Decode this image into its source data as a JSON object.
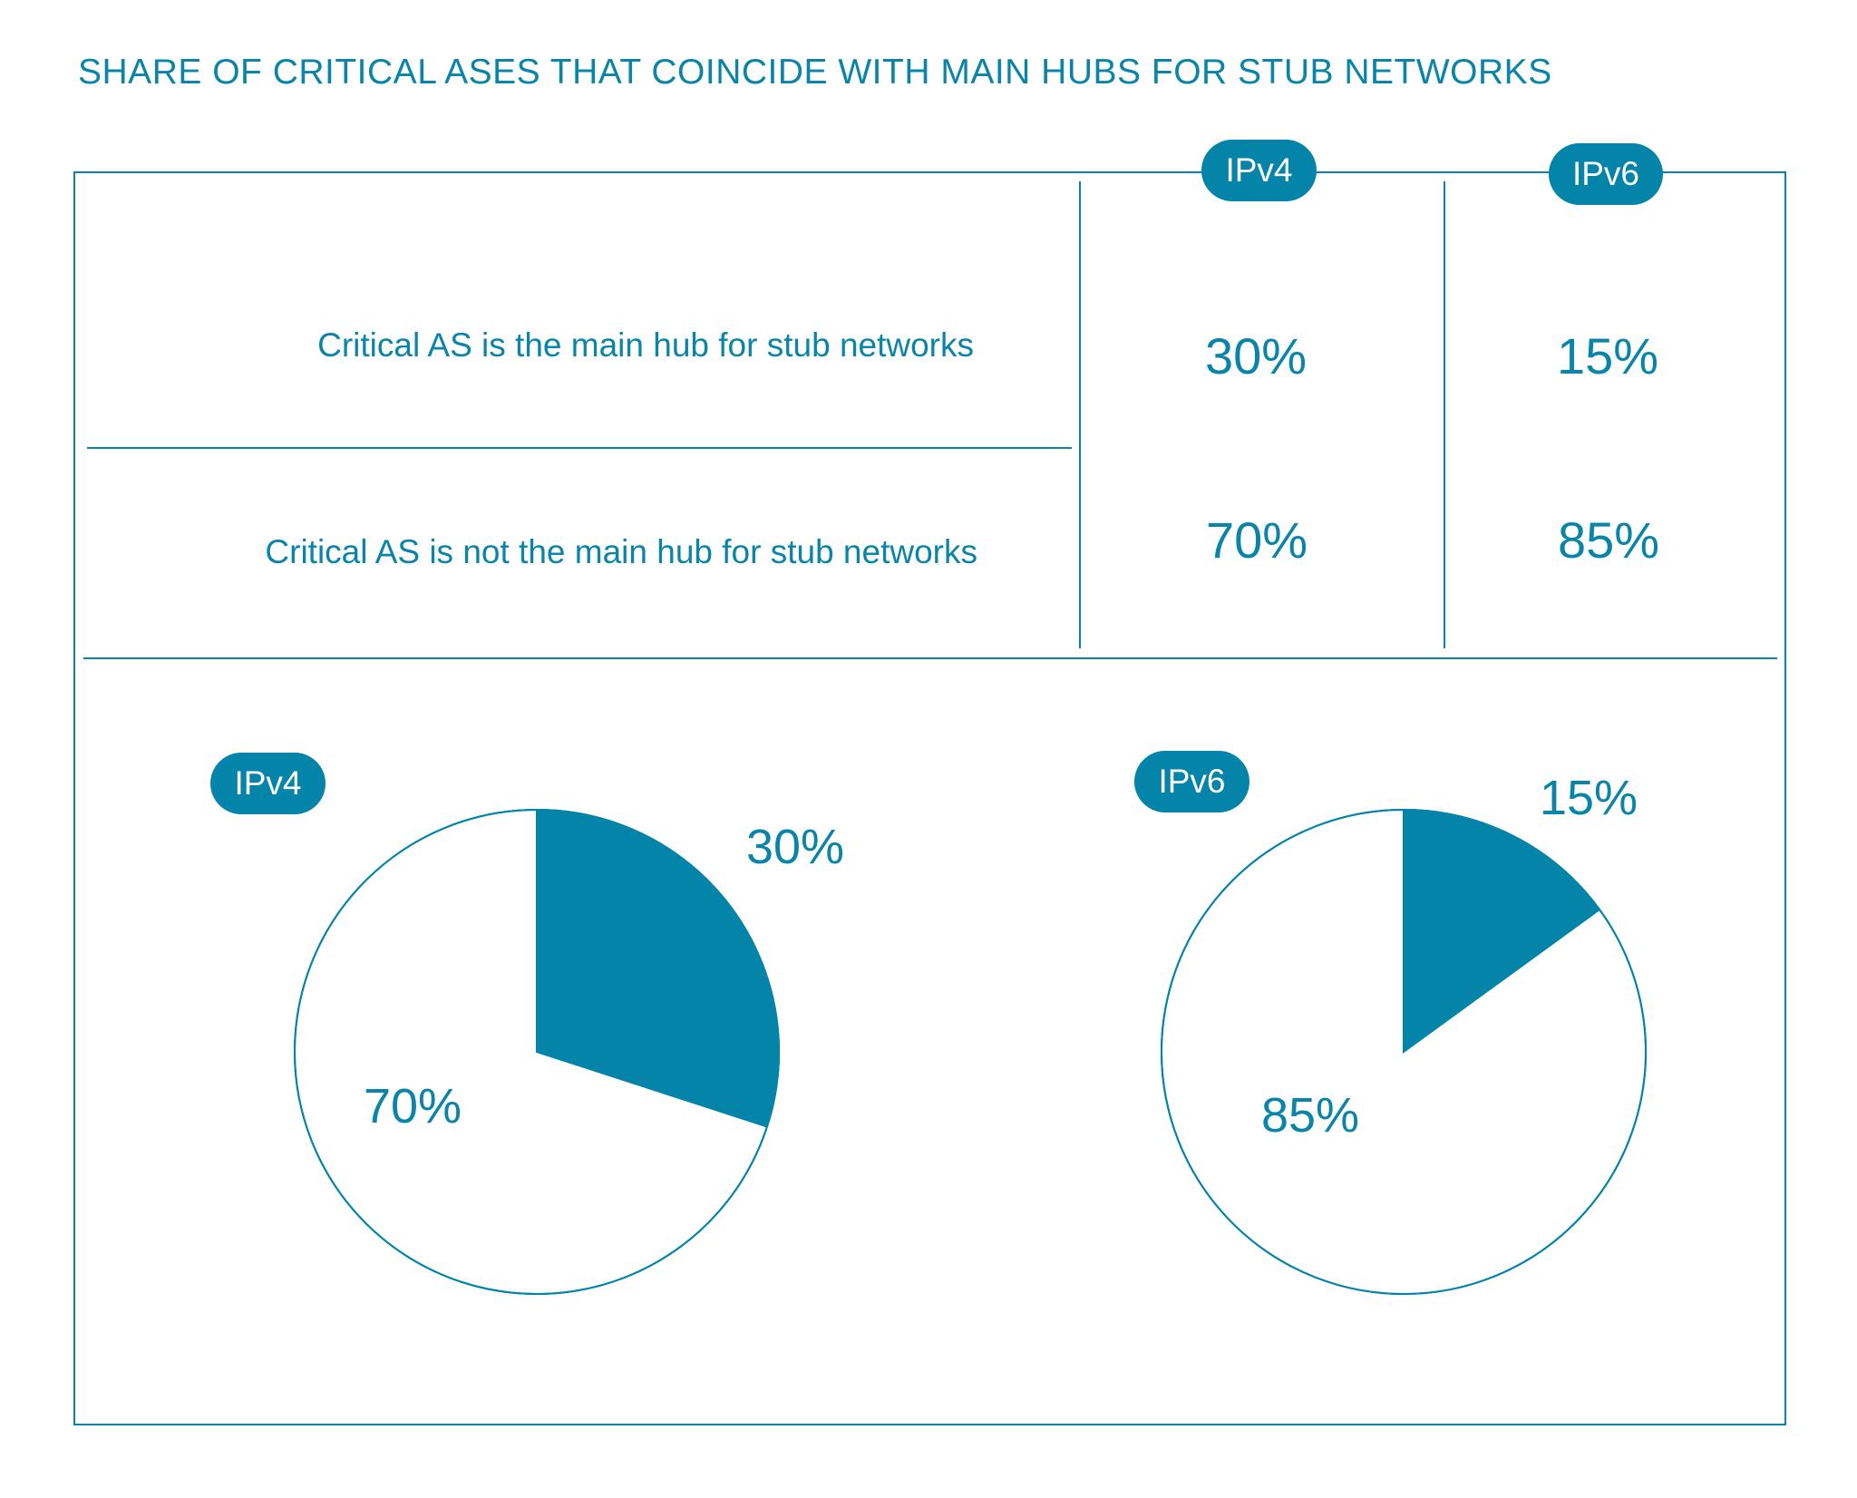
{
  "title": "SHARE OF CRITICAL ASES THAT COINCIDE WITH MAIN HUBS FOR STUB NETWORKS",
  "colors": {
    "accent": "#0584a9",
    "text": "#0a84a8",
    "background": "#ffffff"
  },
  "table": {
    "columns": [
      "IPv4",
      "IPv6"
    ],
    "rows": [
      {
        "label": "Critical AS is the main hub for stub networks",
        "values": [
          "30%",
          "15%"
        ]
      },
      {
        "label": "Critical AS is not the main hub for stub networks",
        "values": [
          "70%",
          "85%"
        ]
      }
    ]
  },
  "chart_data": [
    {
      "type": "pie",
      "title": "IPv4",
      "categories": [
        "Critical AS is the main hub for stub networks",
        "Critical AS is not the main hub for stub networks"
      ],
      "values": [
        30,
        70
      ],
      "labels": [
        "30%",
        "70%"
      ],
      "colors": [
        "#0584a9",
        "#ffffff"
      ]
    },
    {
      "type": "pie",
      "title": "IPv6",
      "categories": [
        "Critical AS is the main hub for stub networks",
        "Critical AS is not the main hub for stub networks"
      ],
      "values": [
        15,
        85
      ],
      "labels": [
        "15%",
        "85%"
      ],
      "colors": [
        "#0584a9",
        "#ffffff"
      ]
    }
  ]
}
